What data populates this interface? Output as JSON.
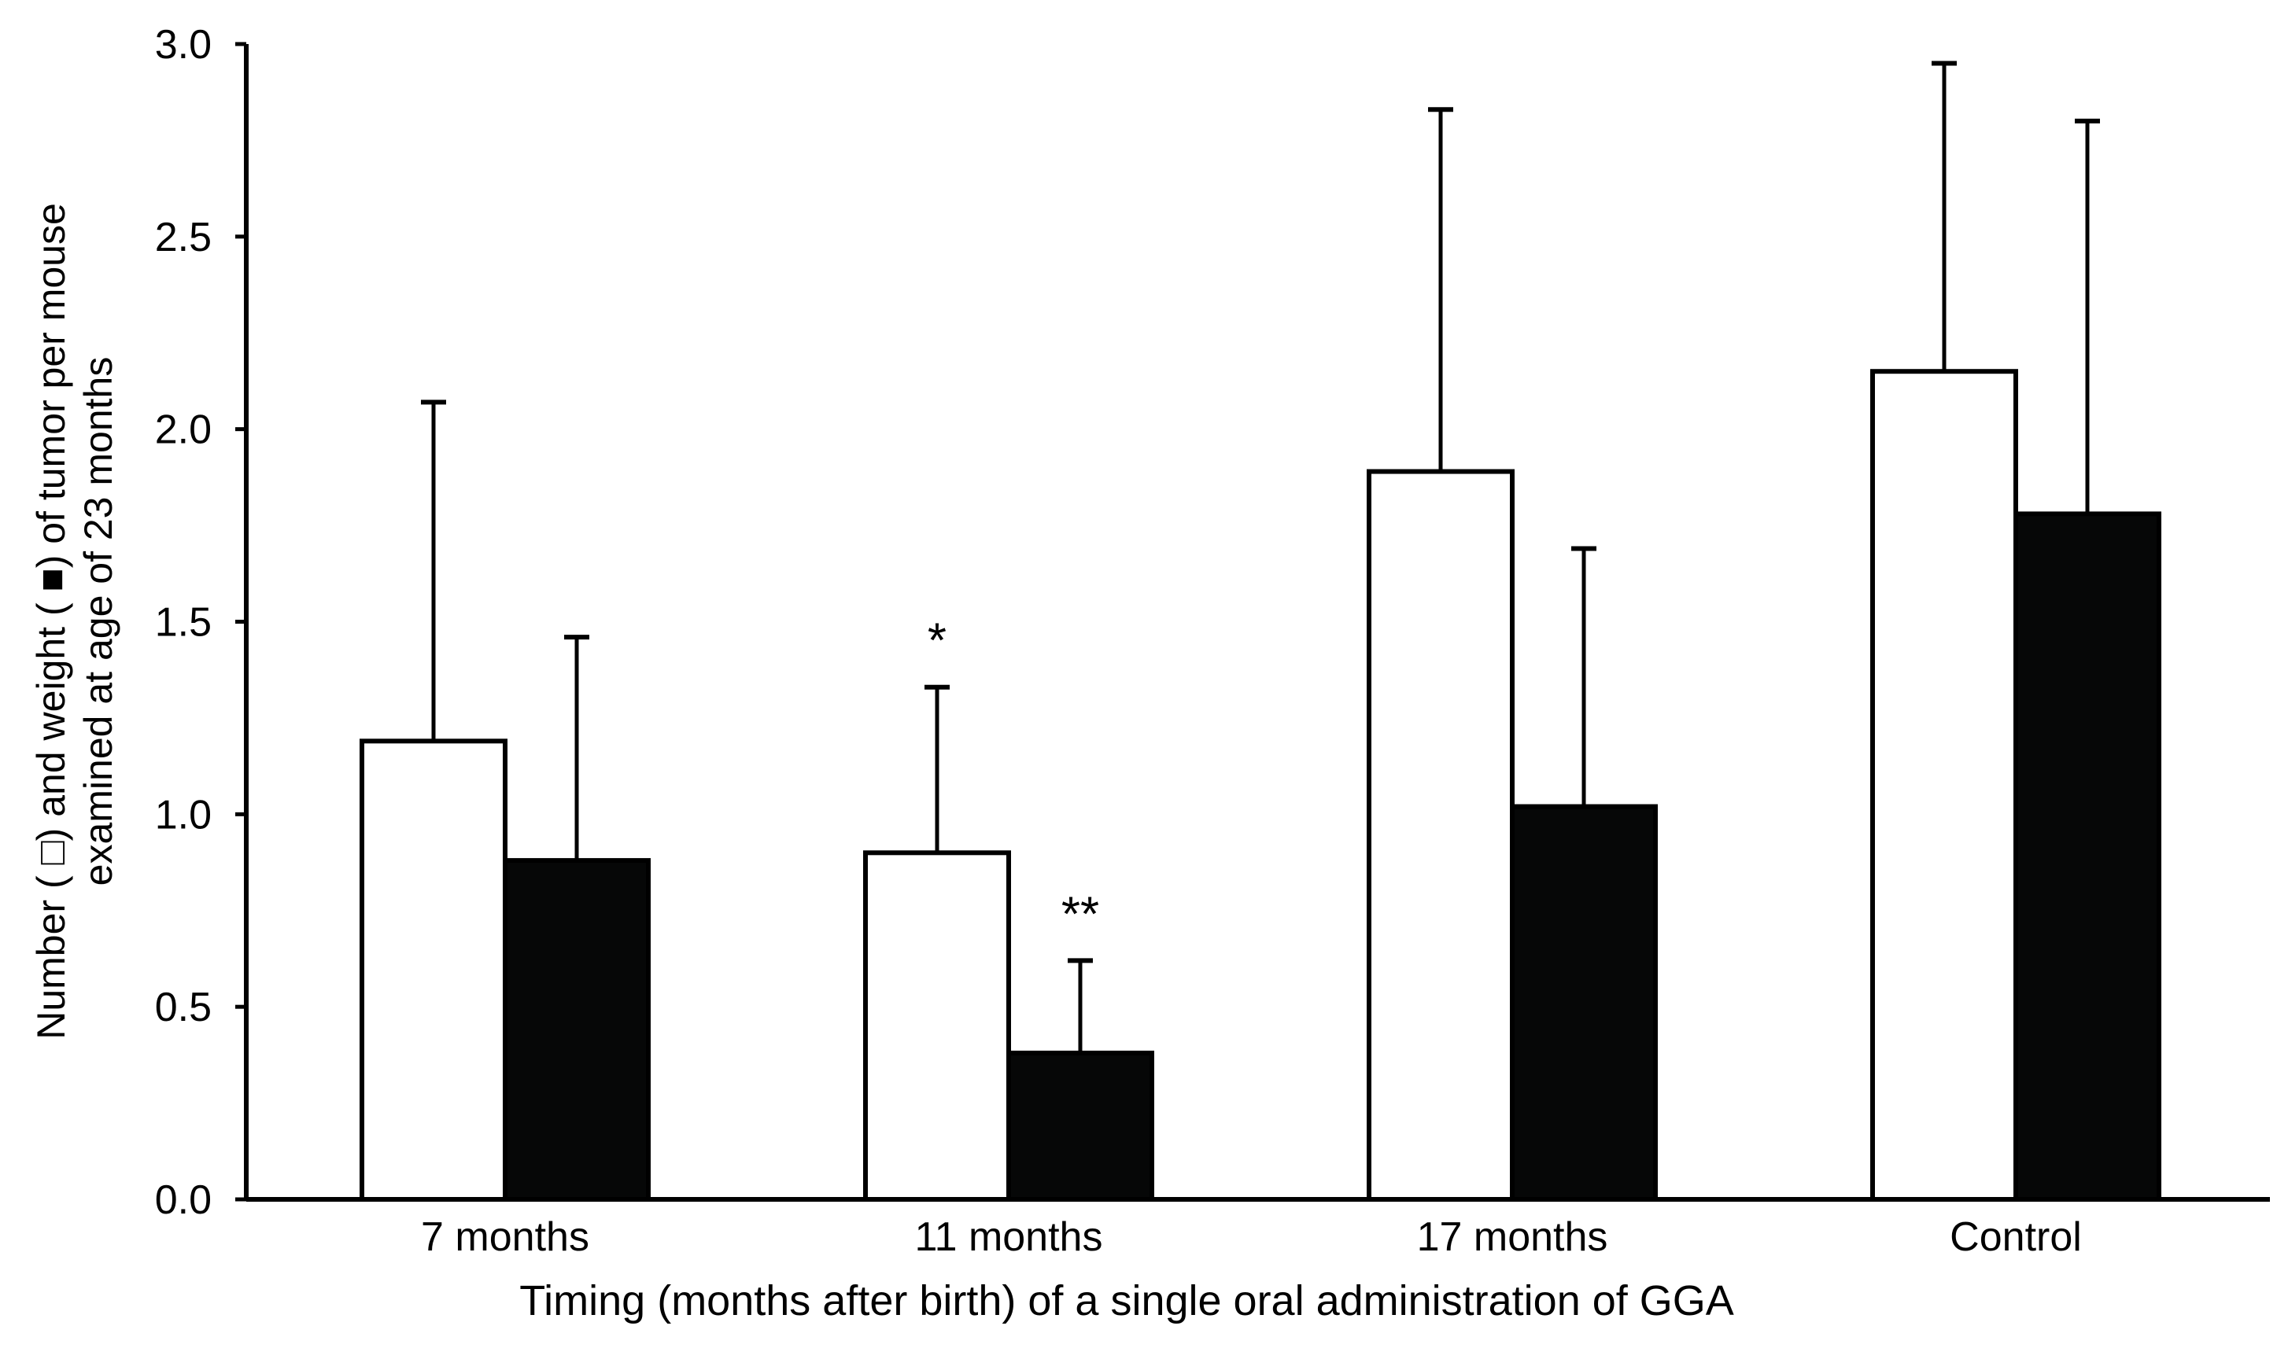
{
  "chart_data": {
    "type": "bar",
    "title": "",
    "xlabel": "Timing (months after birth) of a single oral administration of GGA",
    "ylabel_line1": "Number ( □) and weight ( ■) of tumor per mouse",
    "ylabel_line2": "examined at age of 23 months",
    "ylim": [
      0,
      3.0
    ],
    "yticks": [
      "0.0",
      "0.5",
      "1.0",
      "1.5",
      "2.0",
      "2.5",
      "3.0"
    ],
    "categories": [
      "7 months",
      "11 months",
      "17 months",
      "Control"
    ],
    "series": [
      {
        "name": "Number",
        "fill": "#ffffff",
        "values": [
          1.19,
          0.9,
          1.89,
          2.15
        ],
        "errors": [
          0.88,
          0.43,
          0.94,
          0.8
        ],
        "annotations": [
          "",
          "*",
          "",
          ""
        ]
      },
      {
        "name": "Weight",
        "fill": "#060707",
        "values": [
          0.88,
          0.38,
          1.02,
          1.78
        ],
        "errors": [
          0.58,
          0.24,
          0.67,
          1.02
        ],
        "annotations": [
          "",
          "**",
          "",
          ""
        ]
      }
    ],
    "colors": {
      "axis": "#000000",
      "number_bar": "#ffffff",
      "weight_bar": "#060707"
    }
  }
}
